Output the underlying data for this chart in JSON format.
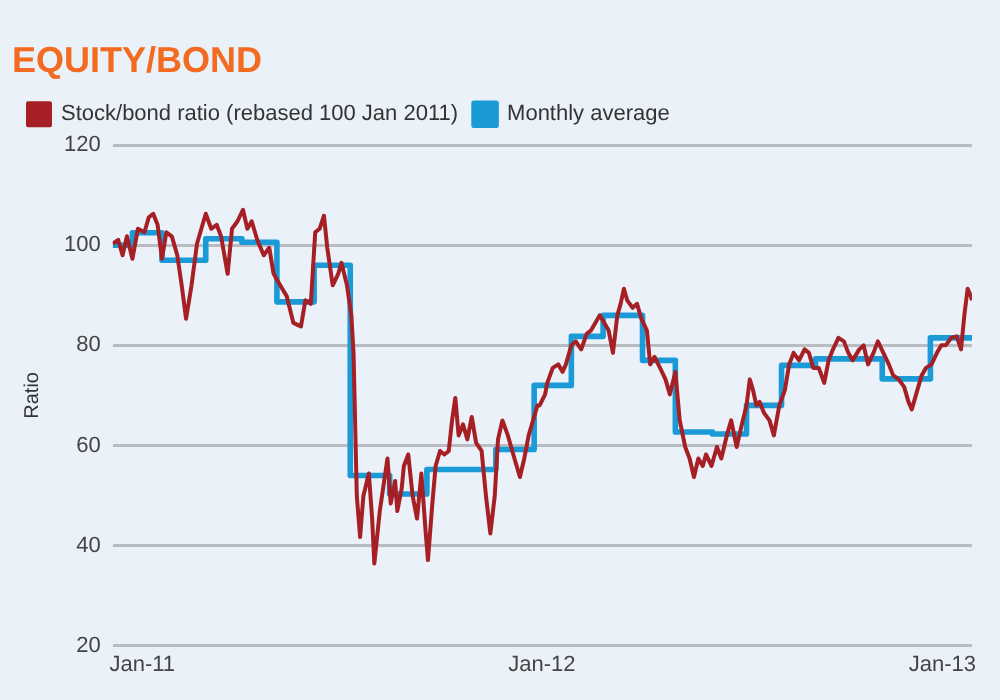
{
  "chart_data": {
    "type": "line",
    "title": "EQUITY/BOND",
    "ylabel": "Ratio",
    "xlim": [
      "2010-12-05",
      "2013-01-28"
    ],
    "xticks": [
      {
        "value": "2011-01",
        "label": "Jan-11"
      },
      {
        "value": "2012-01",
        "label": "Jan-12"
      },
      {
        "value": "2013-01",
        "label": "Jan-13"
      }
    ],
    "ylim": [
      20,
      120
    ],
    "yticks": [
      20,
      40,
      60,
      80,
      100,
      120
    ],
    "grid": "y",
    "legend": "top",
    "marker": "none",
    "series": [
      {
        "name": "Stock/bond ratio (rebased 100 Jan 2011)",
        "type": "line",
        "color": "#a51f24",
        "x": [
          "2010-12-05",
          "2010-12-10",
          "2010-12-14",
          "2010-12-18",
          "2010-12-23",
          "2010-12-28",
          "2011-01-03",
          "2011-01-07",
          "2011-01-11",
          "2011-01-15",
          "2011-01-19",
          "2011-01-23",
          "2011-01-28",
          "2011-02-02",
          "2011-02-06",
          "2011-02-10",
          "2011-02-15",
          "2011-02-20",
          "2011-02-24",
          "2011-02-28",
          "2011-03-05",
          "2011-03-10",
          "2011-03-14",
          "2011-03-20",
          "2011-03-24",
          "2011-03-29",
          "2011-04-03",
          "2011-04-07",
          "2011-04-11",
          "2011-04-16",
          "2011-04-22",
          "2011-04-27",
          "2011-05-01",
          "2011-05-07",
          "2011-05-13",
          "2011-05-19",
          "2011-05-26",
          "2011-05-30",
          "2011-06-04",
          "2011-06-08",
          "2011-06-12",
          "2011-06-16",
          "2011-06-19",
          "2011-06-24",
          "2011-06-29",
          "2011-07-02",
          "2011-07-07",
          "2011-07-11",
          "2011-07-13",
          "2011-07-16",
          "2011-07-19",
          "2011-07-22",
          "2011-07-27",
          "2011-07-30",
          "2011-08-01",
          "2011-08-06",
          "2011-08-09",
          "2011-08-13",
          "2011-08-16",
          "2011-08-20",
          "2011-08-22",
          "2011-08-26",
          "2011-08-28",
          "2011-09-01",
          "2011-09-05",
          "2011-09-09",
          "2011-09-13",
          "2011-09-17",
          "2011-09-19",
          "2011-09-23",
          "2011-09-26",
          "2011-09-30",
          "2011-10-04",
          "2011-10-08",
          "2011-10-11",
          "2011-10-14",
          "2011-10-17",
          "2011-10-21",
          "2011-10-25",
          "2011-10-29",
          "2011-11-02",
          "2011-11-07",
          "2011-11-11",
          "2011-11-15",
          "2011-11-19",
          "2011-11-22",
          "2011-11-26",
          "2011-12-01",
          "2011-12-07",
          "2011-12-12",
          "2011-12-16",
          "2011-12-20",
          "2011-12-24",
          "2011-12-28",
          "2011-12-30",
          "2012-01-04",
          "2012-01-06",
          "2012-01-11",
          "2012-01-16",
          "2012-01-20",
          "2012-01-23",
          "2012-01-28",
          "2012-02-01",
          "2012-02-06",
          "2012-02-11",
          "2012-02-15",
          "2012-02-19",
          "2012-02-23",
          "2012-02-27",
          "2012-03-02",
          "2012-03-06",
          "2012-03-10",
          "2012-03-13",
          "2012-03-16",
          "2012-03-19",
          "2012-03-24",
          "2012-03-28",
          "2012-04-01",
          "2012-04-06",
          "2012-04-09",
          "2012-04-13",
          "2012-04-18",
          "2012-04-23",
          "2012-04-27",
          "2012-05-02",
          "2012-05-06",
          "2012-05-11",
          "2012-05-15",
          "2012-05-19",
          "2012-05-23",
          "2012-05-27",
          "2012-05-30",
          "2012-06-04",
          "2012-06-09",
          "2012-06-13",
          "2012-06-18",
          "2012-06-22",
          "2012-06-27",
          "2012-07-01",
          "2012-07-06",
          "2012-07-09",
          "2012-07-12",
          "2012-07-15",
          "2012-07-18",
          "2012-07-22",
          "2012-07-27",
          "2012-07-31",
          "2012-08-05",
          "2012-08-10",
          "2012-08-14",
          "2012-08-18",
          "2012-08-23",
          "2012-08-28",
          "2012-09-01",
          "2012-09-05",
          "2012-09-10",
          "2012-09-15",
          "2012-09-19",
          "2012-09-23",
          "2012-09-28",
          "2012-10-03",
          "2012-10-07",
          "2012-10-11",
          "2012-10-17",
          "2012-10-21",
          "2012-10-25",
          "2012-10-30",
          "2012-11-03",
          "2012-11-08",
          "2012-11-13",
          "2012-11-17",
          "2012-11-22",
          "2012-11-27",
          "2012-12-01",
          "2012-12-04",
          "2012-12-09",
          "2012-12-13",
          "2012-12-17",
          "2012-12-22",
          "2012-12-27",
          "2012-12-31",
          "2013-01-04",
          "2013-01-09",
          "2013-01-14",
          "2013-01-18",
          "2013-01-21",
          "2013-01-24",
          "2013-01-27",
          "2013-01-28"
        ],
        "values": [
          100.3,
          101.1,
          98.0,
          101.8,
          97.3,
          103.3,
          102.6,
          105.6,
          106.3,
          104.1,
          97.3,
          102.6,
          101.8,
          98.0,
          92.0,
          85.3,
          92.0,
          100.3,
          103.3,
          106.3,
          103.3,
          104.1,
          101.8,
          94.3,
          103.3,
          104.8,
          107.1,
          103.3,
          104.8,
          101.1,
          98.0,
          99.5,
          94.3,
          92.0,
          89.8,
          84.5,
          83.8,
          89.0,
          88.3,
          102.6,
          103.3,
          105.9,
          99.5,
          92.0,
          94.3,
          96.5,
          92.0,
          86.0,
          78.5,
          49.9,
          41.7,
          49.9,
          54.4,
          45.4,
          36.4,
          46.9,
          51.4,
          57.4,
          48.4,
          52.9,
          46.9,
          51.4,
          55.9,
          58.2,
          49.9,
          45.4,
          54.4,
          42.4,
          37.1,
          48.4,
          55.9,
          58.9,
          58.2,
          58.9,
          65.0,
          69.5,
          62.0,
          64.2,
          61.2,
          65.7,
          60.5,
          58.9,
          49.9,
          42.4,
          49.9,
          61.2,
          65.0,
          62.0,
          57.4,
          53.7,
          57.4,
          62.0,
          65.0,
          68.0,
          68.0,
          70.2,
          72.5,
          75.5,
          76.2,
          74.7,
          76.2,
          80.0,
          80.8,
          79.2,
          82.3,
          83.0,
          84.5,
          86.0,
          84.5,
          83.0,
          78.5,
          86.0,
          88.3,
          91.3,
          89.0,
          87.5,
          88.3,
          85.3,
          83.0,
          76.2,
          77.7,
          75.5,
          73.2,
          70.2,
          74.7,
          65.0,
          59.7,
          57.4,
          53.7,
          57.4,
          55.9,
          58.2,
          55.9,
          59.7,
          57.4,
          62.0,
          65.0,
          59.7,
          63.5,
          68.0,
          73.2,
          71.0,
          68.0,
          68.7,
          66.5,
          65.0,
          62.0,
          68.0,
          71.0,
          76.2,
          78.5,
          77.0,
          79.2,
          78.5,
          75.5,
          75.5,
          72.5,
          77.0,
          79.2,
          81.5,
          80.8,
          78.5,
          77.0,
          79.2,
          80.0,
          76.2,
          78.5,
          80.8,
          78.5,
          76.2,
          74.0,
          73.2,
          71.7,
          68.7,
          67.2,
          71.0,
          74.0,
          75.5,
          76.2,
          78.5,
          80.0,
          80.0,
          81.5,
          81.8,
          79.2,
          86.0,
          91.3,
          89.8,
          89.0
        ]
      },
      {
        "name": "Monthly average",
        "type": "step",
        "color": "#1a9ad7",
        "x": [
          "2010-12-05",
          "2010-12-23",
          "2011-01-19",
          "2011-02-28",
          "2011-04-02",
          "2011-05-04",
          "2011-06-07",
          "2011-07-10",
          "2011-08-15",
          "2011-09-18",
          "2011-11-20",
          "2011-12-25",
          "2012-01-28",
          "2012-02-26",
          "2012-04-02",
          "2012-05-02",
          "2012-06-05",
          "2012-07-06",
          "2012-08-07",
          "2012-09-07",
          "2012-11-07",
          "2012-12-21",
          "2013-01-28"
        ],
        "values": [
          100,
          102.5,
          97,
          101.3,
          100.6,
          88.7,
          96,
          54,
          50.3,
          55.2,
          59.2,
          72,
          81.8,
          86,
          77,
          62.7,
          62.3,
          68,
          76,
          77.3,
          73.3,
          81.5,
          81.5
        ]
      }
    ]
  }
}
